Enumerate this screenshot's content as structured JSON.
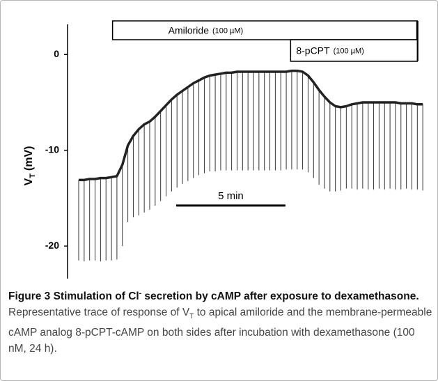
{
  "chart_data": {
    "type": "line",
    "ylabel": {
      "main": "V",
      "sub": "T",
      "unit": "(mV)"
    },
    "xlim": [
      0,
      16
    ],
    "ylim": [
      -25,
      3
    ],
    "yticks": [
      0,
      -10,
      -20
    ],
    "x": [
      0,
      0.25,
      0.5,
      0.75,
      1,
      1.25,
      1.5,
      1.75,
      2,
      2.25,
      2.5,
      2.75,
      3,
      3.25,
      3.5,
      3.75,
      4,
      4.25,
      4.5,
      4.75,
      5,
      5.25,
      5.5,
      5.75,
      6,
      6.25,
      6.5,
      6.75,
      7,
      7.25,
      7.5,
      7.75,
      8,
      8.25,
      8.5,
      8.75,
      9,
      9.25,
      9.5,
      9.75,
      10,
      10.25,
      10.5,
      10.75,
      11,
      11.25,
      11.5,
      11.75,
      12,
      12.25,
      12.5,
      12.75,
      13,
      13.25,
      13.5,
      13.75,
      14,
      14.25,
      14.5,
      14.75,
      15,
      15.25,
      15.5,
      15.75
    ],
    "series": [
      {
        "color": "#222222",
        "values": [
          -13.1,
          -13.1,
          -13.0,
          -13.0,
          -12.9,
          -12.9,
          -12.8,
          -12.7,
          -11.5,
          -9.5,
          -8.5,
          -7.8,
          -7.3,
          -7.0,
          -6.5,
          -5.9,
          -5.3,
          -4.7,
          -4.2,
          -3.8,
          -3.4,
          -3.0,
          -2.7,
          -2.4,
          -2.2,
          -2.1,
          -2.0,
          -1.9,
          -1.9,
          -1.8,
          -1.8,
          -1.8,
          -1.8,
          -1.8,
          -1.8,
          -1.8,
          -1.8,
          -1.8,
          -1.8,
          -1.7,
          -1.7,
          -1.8,
          -2.2,
          -2.9,
          -3.7,
          -4.4,
          -5.0,
          -5.4,
          -5.5,
          -5.4,
          -5.2,
          -5.1,
          -5.0,
          -5.0,
          -5.0,
          -5.0,
          -5.0,
          -5.0,
          -5.0,
          -5.1,
          -5.1,
          -5.1,
          -5.2,
          -5.2
        ]
      },
      {
        "color": "#333333",
        "values": [
          -21.5,
          -21.6,
          -21.5,
          -21.5,
          -21.6,
          -21.5,
          -21.5,
          -21.4,
          -20.0,
          -17.5,
          -17.0,
          -16.8,
          -16.5,
          -16.2,
          -15.8,
          -15.3,
          -14.8,
          -14.3,
          -13.9,
          -13.5,
          -13.2,
          -12.9,
          -12.6,
          -12.4,
          -12.2,
          -12.2,
          -12.1,
          -12.1,
          -12.1,
          -12.1,
          -12.1,
          -12.1,
          -12.1,
          -12.1,
          -12.1,
          -12.1,
          -12.1,
          -12.1,
          -12.0,
          -12.0,
          -12.0,
          -12.0,
          -12.3,
          -12.9,
          -13.6,
          -14.0,
          -14.3,
          -14.3,
          -14.2,
          -14.0,
          -14.0,
          -14.1,
          -14.0,
          -14.1,
          -14.1,
          -14.0,
          -14.1,
          -14.0,
          -14.1,
          -14.1,
          -14.0,
          -14.1,
          -14.1,
          -14.2
        ]
      }
    ],
    "annotations": [
      {
        "text": "Amiloride",
        "note": "(100 µM)",
        "start": 1.55,
        "end": 15.5
      },
      {
        "text": "8-pCPT",
        "note": "(100 µM)",
        "start": 9.7,
        "end": 15.5
      }
    ],
    "scale_bar": {
      "label": "5 min",
      "length": 5
    }
  },
  "caption": {
    "title": [
      "Figure 3 Stimulation of Cl",
      "-",
      " secretion by cAMP after exposure to dexamethasone."
    ],
    "body": [
      "Representative trace of response of V",
      "T",
      " to apical amiloride and the membrane-permeable cAMP analog 8-pCPT-cAMP on both sides after incubation with dexamethasone (100 nM, 24 h)."
    ]
  }
}
